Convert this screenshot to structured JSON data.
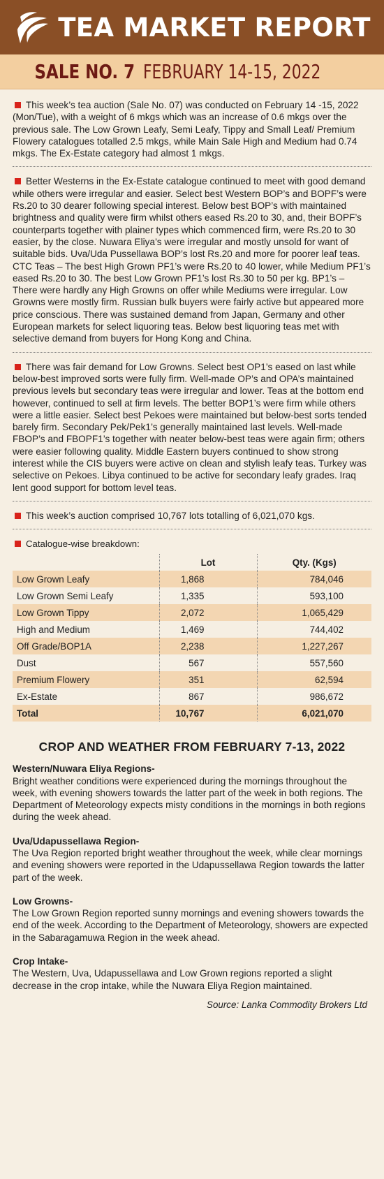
{
  "header": {
    "title": "TEA MARKET REPORT",
    "sale_no": "SALE NO. 7",
    "sale_date": "FEBRUARY 14-15, 2022"
  },
  "colors": {
    "header_bg": "#8a4f26",
    "sale_bar_bg": "#f3cfa0",
    "bullet": "#d8231b",
    "row_shade": "#f3d6b2"
  },
  "paragraphs": [
    "This week’s tea auction (Sale No. 07) was conducted on February 14 -15, 2022 (Mon/Tue), with a weight of 6 mkgs which was an increase of 0.6 mkgs over the previous sale. The Low Grown Leafy, Semi Leafy, Tippy and Small Leaf/ Premium Flowery catalogues totalled 2.5 mkgs, while Main Sale High and Medium had 0.74 mkgs. The Ex-Estate category had almost 1 mkgs.",
    "Better Westerns in the Ex-Estate catalogue continued to meet with good demand while others were irregular and easier. Select best Western BOP’s and BOPF’s were Rs.20 to 30 dearer following special interest. Below best BOP’s with maintained brightness and quality were firm whilst others eased Rs.20 to 30, and, their BOPF’s counterparts together with plainer types which commenced firm, were Rs.20 to 30 easier, by the close. Nuwara Eliya’s were irregular and mostly unsold for want of suitable bids. Uva/Uda Pussellawa BOP’s lost Rs.20 and more for poorer leaf teas. CTC Teas – The best High Grown PF1’s were Rs.20 to 40 lower, while Medium PF1’s eased Rs.20 to 30. The best Low Grown PF1’s lost Rs.30 to 50 per kg. BP1’s – There were hardly any High Growns on offer while Mediums were irregular. Low Growns were mostly firm. Russian bulk buyers were fairly active but appeared more price conscious. There was sustained demand from Japan, Germany and other European markets for select liquoring teas. Below best liquoring teas met with selective demand from buyers for Hong Kong and China.",
    "There was fair demand for Low Growns. Select best OP1’s eased on last while below-best improved sorts were fully firm. Well-made OP’s and OPA’s maintained previous levels but secondary teas were irregular and lower. Teas at the bottom end however, continued to sell at firm levels. The better BOP1’s were firm while others were a little easier. Select best Pekoes were maintained but below-best sorts tended barely firm. Secondary Pek/Pek1’s generally maintained last levels. Well-made FBOP’s and FBOPF1’s together with neater below-best teas were again firm; others were easier following quality. Middle Eastern buyers continued to show strong interest while the CIS buyers were active on clean and stylish leafy teas. Turkey was selective on Pekoes. Libya continued to be active for secondary leafy grades. Iraq lent good support for bottom level teas.",
    "This week’s auction comprised 10,767 lots totalling of 6,021,070 kgs."
  ],
  "catalogue": {
    "heading": "Catalogue-wise breakdown:",
    "columns": [
      "",
      "Lot",
      "Qty. (Kgs)"
    ],
    "rows": [
      {
        "name": "Low Grown Leafy",
        "lot": "1,868",
        "qty": "784,046"
      },
      {
        "name": "Low Grown Semi Leafy",
        "lot": "1,335",
        "qty": "593,100"
      },
      {
        "name": "Low Grown Tippy",
        "lot": "2,072",
        "qty": "1,065,429"
      },
      {
        "name": "High and Medium",
        "lot": "1,469",
        "qty": "744,402"
      },
      {
        "name": "Off Grade/BOP1A",
        "lot": "2,238",
        "qty": "1,227,267"
      },
      {
        "name": "Dust",
        "lot": "567",
        "qty": "557,560"
      },
      {
        "name": "Premium Flowery",
        "lot": "351",
        "qty": "62,594"
      },
      {
        "name": "Ex-Estate",
        "lot": "867",
        "qty": "986,672"
      }
    ],
    "total": {
      "name": "Total",
      "lot": "10,767",
      "qty": "6,021,070"
    }
  },
  "crop_weather": {
    "title": "CROP AND WEATHER FROM  FEBRUARY 7-13, 2022",
    "regions": [
      {
        "title": "Western/Nuwara Eliya Regions-",
        "text": "Bright weather conditions were experienced during the mornings throughout the week, with evening showers towards the latter part of the week in both regions. The Department of Meteorology expects misty conditions in the mornings in both regions during the week ahead."
      },
      {
        "title": "Uva/Udapussellawa Region-",
        "text": "The Uva Region reported bright weather throughout the week, while clear mornings and evening showers were reported in the Udapussellawa Region towards the latter part of the week."
      },
      {
        "title": "Low Growns-",
        "text": "The Low Grown Region reported sunny mornings and evening showers towards the end of the week. According to the Department of Meteorology, showers are expected in the Sabaragamuwa Region in the week ahead."
      },
      {
        "title": "Crop Intake-",
        "text": "The Western, Uva, Udapussellawa and Low Grown regions reported a slight decrease in the crop intake, while the Nuwara Eliya Region maintained."
      }
    ],
    "source": "Source: Lanka Commodity Brokers Ltd"
  }
}
